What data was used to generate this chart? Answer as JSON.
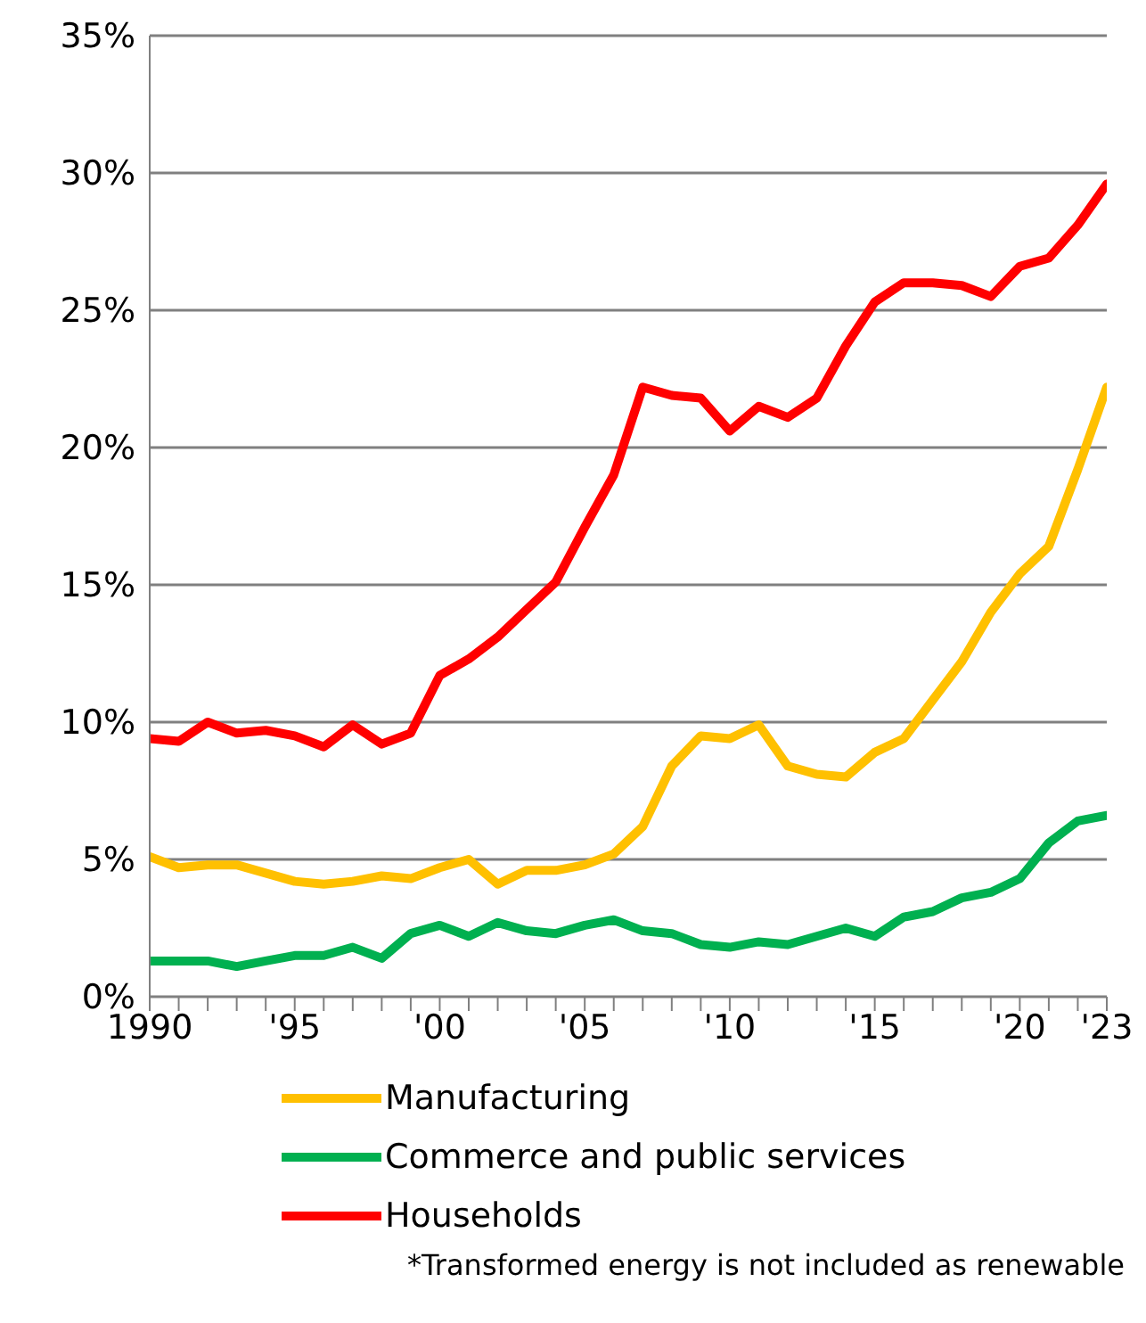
{
  "chart_data": {
    "type": "line",
    "x": [
      1990,
      1991,
      1992,
      1993,
      1994,
      1995,
      1996,
      1997,
      1998,
      1999,
      2000,
      2001,
      2002,
      2003,
      2004,
      2005,
      2006,
      2007,
      2008,
      2009,
      2010,
      2011,
      2012,
      2013,
      2014,
      2015,
      2016,
      2017,
      2018,
      2019,
      2020,
      2021,
      2022,
      2023
    ],
    "series": [
      {
        "name": "Manufacturing",
        "color": "#ffc000",
        "values": [
          5.1,
          4.7,
          4.8,
          4.8,
          4.5,
          4.2,
          4.1,
          4.2,
          4.4,
          4.3,
          4.7,
          5.0,
          4.1,
          4.6,
          4.6,
          4.8,
          5.2,
          6.2,
          8.4,
          9.5,
          9.4,
          9.9,
          8.4,
          8.1,
          8.0,
          8.9,
          9.4,
          10.8,
          12.2,
          14.0,
          15.4,
          16.4,
          19.2,
          22.2
        ]
      },
      {
        "name": "Commerce and public services",
        "color": "#00b050",
        "values": [
          1.3,
          1.3,
          1.3,
          1.1,
          1.3,
          1.5,
          1.5,
          1.8,
          1.4,
          2.3,
          2.6,
          2.2,
          2.7,
          2.4,
          2.3,
          2.6,
          2.8,
          2.4,
          2.3,
          1.9,
          1.8,
          2.0,
          1.9,
          2.2,
          2.5,
          2.2,
          2.9,
          3.1,
          3.6,
          3.8,
          4.3,
          5.6,
          6.4,
          6.6
        ]
      },
      {
        "name": "Households",
        "color": "#ff0000",
        "values": [
          9.4,
          9.3,
          10.0,
          9.6,
          9.7,
          9.5,
          9.1,
          9.9,
          9.2,
          9.6,
          11.7,
          12.3,
          13.1,
          14.1,
          15.1,
          17.1,
          19.0,
          22.2,
          21.9,
          21.8,
          20.6,
          21.5,
          21.1,
          21.8,
          23.7,
          25.3,
          26.0,
          26.0,
          25.9,
          25.5,
          26.6,
          26.9,
          28.1,
          29.6
        ]
      }
    ],
    "xlim": [
      1990,
      2023
    ],
    "xticks": [
      {
        "value": 1990,
        "label": "1990"
      },
      {
        "value": 1991,
        "label": null
      },
      {
        "value": 1992,
        "label": null
      },
      {
        "value": 1993,
        "label": null
      },
      {
        "value": 1994,
        "label": null
      },
      {
        "value": 1995,
        "label": "'95"
      },
      {
        "value": 1996,
        "label": null
      },
      {
        "value": 1997,
        "label": null
      },
      {
        "value": 1998,
        "label": null
      },
      {
        "value": 1999,
        "label": null
      },
      {
        "value": 2000,
        "label": "'00"
      },
      {
        "value": 2001,
        "label": null
      },
      {
        "value": 2002,
        "label": null
      },
      {
        "value": 2003,
        "label": null
      },
      {
        "value": 2004,
        "label": null
      },
      {
        "value": 2005,
        "label": "'05"
      },
      {
        "value": 2006,
        "label": null
      },
      {
        "value": 2007,
        "label": null
      },
      {
        "value": 2008,
        "label": null
      },
      {
        "value": 2009,
        "label": null
      },
      {
        "value": 2010,
        "label": "'10"
      },
      {
        "value": 2011,
        "label": null
      },
      {
        "value": 2012,
        "label": null
      },
      {
        "value": 2013,
        "label": null
      },
      {
        "value": 2014,
        "label": null
      },
      {
        "value": 2015,
        "label": "'15"
      },
      {
        "value": 2016,
        "label": null
      },
      {
        "value": 2017,
        "label": null
      },
      {
        "value": 2018,
        "label": null
      },
      {
        "value": 2019,
        "label": null
      },
      {
        "value": 2020,
        "label": "'20"
      },
      {
        "value": 2021,
        "label": null
      },
      {
        "value": 2022,
        "label": null
      },
      {
        "value": 2023,
        "label": "'23"
      }
    ],
    "ylim": [
      0,
      35
    ],
    "yticks": [
      {
        "value": 0,
        "label": "0%"
      },
      {
        "value": 5,
        "label": "5%"
      },
      {
        "value": 10,
        "label": "10%"
      },
      {
        "value": 15,
        "label": "15%"
      },
      {
        "value": 20,
        "label": "20%"
      },
      {
        "value": 25,
        "label": "25%"
      },
      {
        "value": 30,
        "label": "30%"
      },
      {
        "value": 35,
        "label": "35%"
      }
    ],
    "grid": "y",
    "legend": "bottom",
    "marker": "none",
    "line_style": "solid",
    "annotations": [
      "*Transformed energy is not included as renewable"
    ]
  }
}
